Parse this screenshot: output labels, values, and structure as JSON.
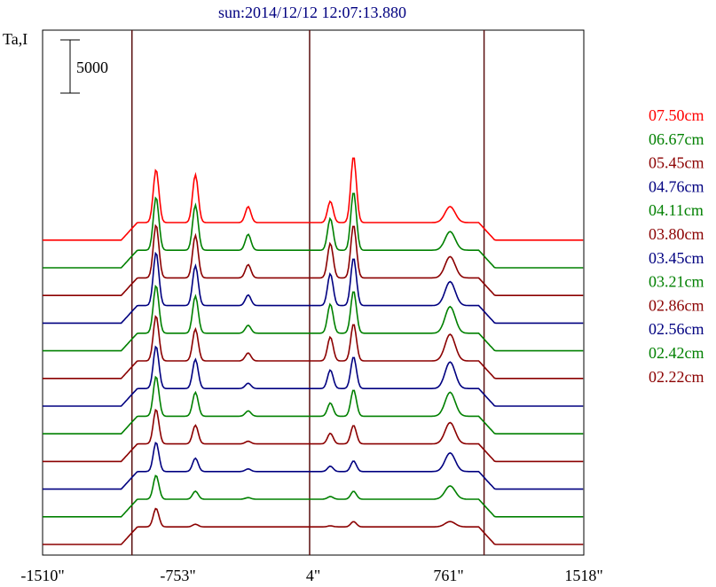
{
  "chart_data": {
    "type": "line",
    "title": "sun:2014/12/12 12:07:13.880",
    "ylabel": "Ta,I",
    "scale_bar_label": "5000",
    "scale_bar_value": 5000,
    "xlim": [
      -1510,
      1518
    ],
    "x_ticks": [
      {
        "value": -1510,
        "label": "-1510\""
      },
      {
        "value": -753,
        "label": "-753\""
      },
      {
        "value": 4,
        "label": "4\""
      },
      {
        "value": 761,
        "label": "761\""
      },
      {
        "value": 1518,
        "label": "1518\""
      }
    ],
    "vertical_lines": [
      -1010,
      -16,
      960
    ],
    "legend_position": "right",
    "series": [
      {
        "name": "07.50cm",
        "color": "#ff0000",
        "offset": 11,
        "peaks": [
          [
            -875,
            1.0
          ],
          [
            -655,
            0.9
          ],
          [
            -360,
            0.3
          ],
          [
            100,
            0.4
          ],
          [
            230,
            1.25
          ],
          [
            770,
            0.3
          ]
        ]
      },
      {
        "name": "06.67cm",
        "color": "#008000",
        "offset": 10,
        "peaks": [
          [
            -875,
            1.0
          ],
          [
            -655,
            0.85
          ],
          [
            -360,
            0.3
          ],
          [
            100,
            0.6
          ],
          [
            230,
            1.1
          ],
          [
            770,
            0.35
          ]
        ]
      },
      {
        "name": "05.45cm",
        "color": "#8b0000",
        "offset": 9,
        "peaks": [
          [
            -875,
            1.0
          ],
          [
            -655,
            0.8
          ],
          [
            -360,
            0.25
          ],
          [
            100,
            0.65
          ],
          [
            230,
            1.0
          ],
          [
            770,
            0.4
          ]
        ]
      },
      {
        "name": "04.76cm",
        "color": "#000080",
        "offset": 8,
        "peaks": [
          [
            -875,
            1.0
          ],
          [
            -655,
            0.75
          ],
          [
            -360,
            0.2
          ],
          [
            100,
            0.6
          ],
          [
            230,
            0.9
          ],
          [
            770,
            0.45
          ]
        ]
      },
      {
        "name": "04.11cm",
        "color": "#008000",
        "offset": 7,
        "peaks": [
          [
            -875,
            0.9
          ],
          [
            -655,
            0.7
          ],
          [
            -360,
            0.15
          ],
          [
            100,
            0.55
          ],
          [
            230,
            0.8
          ],
          [
            770,
            0.5
          ]
        ]
      },
      {
        "name": "03.80cm",
        "color": "#8b0000",
        "offset": 6,
        "peaks": [
          [
            -875,
            0.85
          ],
          [
            -655,
            0.6
          ],
          [
            -360,
            0.15
          ],
          [
            100,
            0.45
          ],
          [
            230,
            0.7
          ],
          [
            770,
            0.5
          ]
        ]
      },
      {
        "name": "03.45cm",
        "color": "#000080",
        "offset": 5,
        "peaks": [
          [
            -875,
            0.8
          ],
          [
            -655,
            0.55
          ],
          [
            -360,
            0.1
          ],
          [
            100,
            0.35
          ],
          [
            230,
            0.6
          ],
          [
            770,
            0.5
          ]
        ]
      },
      {
        "name": "03.21cm",
        "color": "#008000",
        "offset": 4,
        "peaks": [
          [
            -875,
            0.75
          ],
          [
            -655,
            0.45
          ],
          [
            -360,
            0.1
          ],
          [
            100,
            0.25
          ],
          [
            230,
            0.5
          ],
          [
            770,
            0.45
          ]
        ]
      },
      {
        "name": "02.86cm",
        "color": "#8b0000",
        "offset": 3,
        "peaks": [
          [
            -875,
            0.65
          ],
          [
            -655,
            0.35
          ],
          [
            -360,
            0.05
          ],
          [
            100,
            0.2
          ],
          [
            230,
            0.35
          ],
          [
            770,
            0.4
          ]
        ]
      },
      {
        "name": "02.56cm",
        "color": "#000080",
        "offset": 2,
        "peaks": [
          [
            -875,
            0.55
          ],
          [
            -655,
            0.25
          ],
          [
            -360,
            0.05
          ],
          [
            100,
            0.1
          ],
          [
            230,
            0.2
          ],
          [
            770,
            0.35
          ]
        ]
      },
      {
        "name": "02.42cm",
        "color": "#008000",
        "offset": 1,
        "peaks": [
          [
            -875,
            0.45
          ],
          [
            -655,
            0.15
          ],
          [
            -360,
            0.03
          ],
          [
            100,
            0.05
          ],
          [
            230,
            0.15
          ],
          [
            770,
            0.25
          ]
        ]
      },
      {
        "name": "02.22cm",
        "color": "#8b0000",
        "offset": 0,
        "peaks": [
          [
            -875,
            0.35
          ],
          [
            -655,
            0.05
          ],
          [
            -360,
            0.0
          ],
          [
            100,
            0.02
          ],
          [
            230,
            0.1
          ],
          [
            770,
            0.1
          ]
        ]
      }
    ]
  }
}
